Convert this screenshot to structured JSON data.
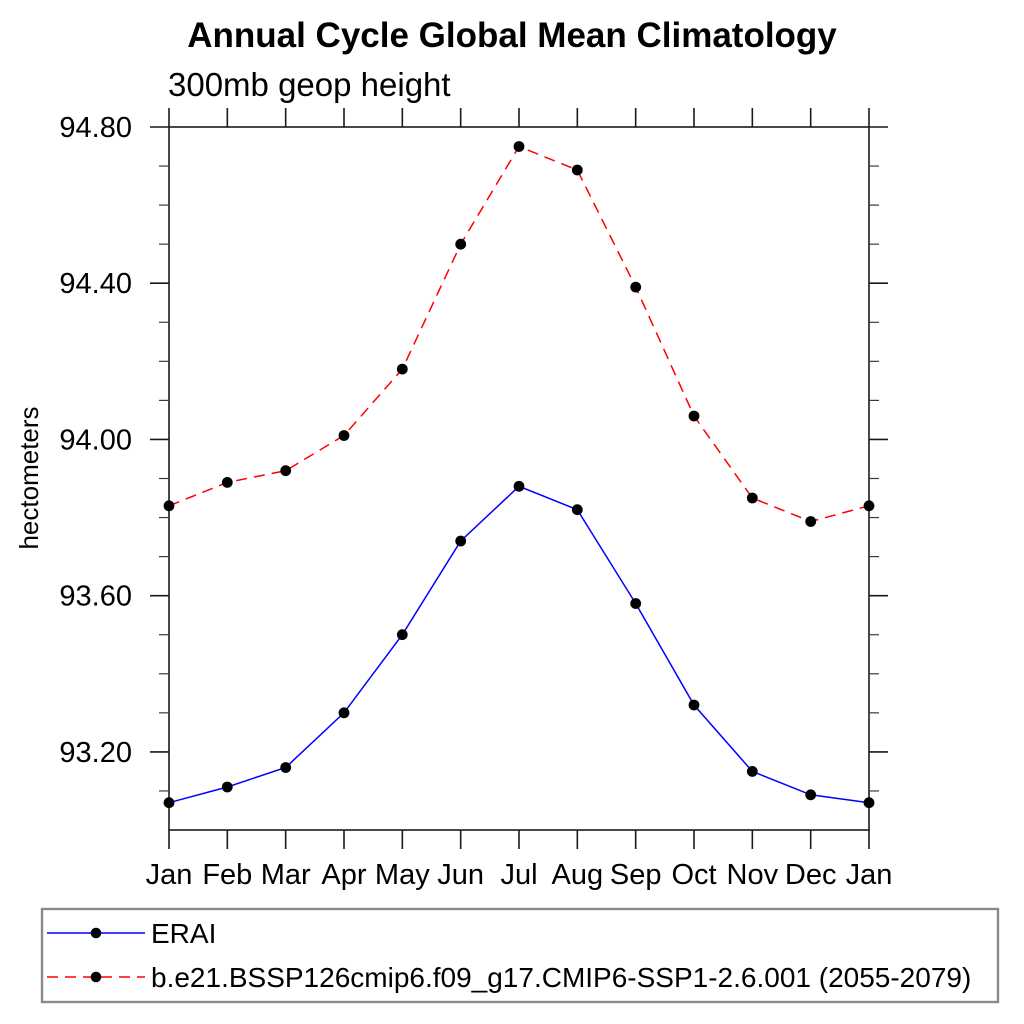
{
  "page": {
    "background": "#ffffff"
  },
  "chart_data": {
    "type": "line",
    "title": "Annual Cycle Global Mean Climatology",
    "subtitle": "300mb geop height",
    "xlabel": "",
    "ylabel": "hectometers",
    "x_categories": [
      "Jan",
      "Feb",
      "Mar",
      "Apr",
      "May",
      "Jun",
      "Jul",
      "Aug",
      "Sep",
      "Oct",
      "Nov",
      "Dec",
      "Jan"
    ],
    "ylim": [
      93.0,
      94.8
    ],
    "yticks": [
      {
        "value": 93.2,
        "label": "93.20"
      },
      {
        "value": 93.6,
        "label": "93.60"
      },
      {
        "value": 94.0,
        "label": "94.00"
      },
      {
        "value": 94.4,
        "label": "94.40"
      },
      {
        "value": 94.8,
        "label": "94.80"
      }
    ],
    "ytick_minor_step": 0.1,
    "grid": false,
    "frame": "box-with-outward-ticks",
    "legend_position": "bottom-left",
    "marker": "filled-circle",
    "marker_color": "#000000",
    "series": [
      {
        "name": "ERAI",
        "color": "#0000ff",
        "line_style": "solid",
        "marker": "filled-circle",
        "marker_color": "#000000",
        "values": [
          93.07,
          93.11,
          93.16,
          93.3,
          93.5,
          93.74,
          93.88,
          93.82,
          93.58,
          93.32,
          93.15,
          93.09,
          93.07
        ]
      },
      {
        "name": "b.e21.BSSP126cmip6.f09_g17.CMIP6-SSP1-2.6.001 (2055-2079)",
        "color": "#ff0000",
        "line_style": "dashed",
        "marker": "filled-circle",
        "marker_color": "#000000",
        "values": [
          93.83,
          93.89,
          93.92,
          94.01,
          94.18,
          94.5,
          94.75,
          94.69,
          94.39,
          94.06,
          93.85,
          93.79,
          93.83
        ]
      }
    ]
  }
}
